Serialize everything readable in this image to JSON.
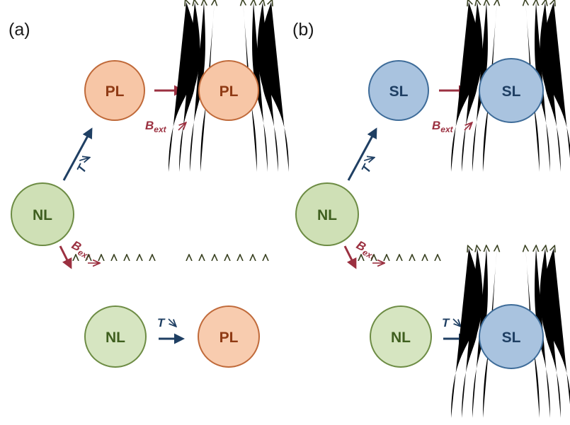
{
  "panels": {
    "a": {
      "label": "(a)",
      "top_left": "PL",
      "top_right": "PL",
      "middle": "NL",
      "bottom_left": "NL",
      "bottom_right": "PL"
    },
    "b": {
      "label": "(b)",
      "top_left": "SL",
      "top_right": "SL",
      "middle": "NL",
      "bottom_left": "NL",
      "bottom_right": "SL"
    }
  },
  "labels": {
    "temperature": "T",
    "field_symbol": "B",
    "field_subscript": "ext"
  },
  "colors": {
    "pl_fill": "#f7c6a6",
    "pl_stroke": "#c06a3a",
    "pl_text": "#8f3a14",
    "sl_fill": "#a9c3df",
    "sl_stroke": "#3e6c99",
    "sl_text": "#1f3f63",
    "nl_fill": "#cfe0b6",
    "nl_stroke": "#6d8c44",
    "nl_text": "#3f5f1f",
    "blue_arrow": "#1f3f63",
    "red_arrow": "#9b3040",
    "field_line": "#3a4222"
  }
}
